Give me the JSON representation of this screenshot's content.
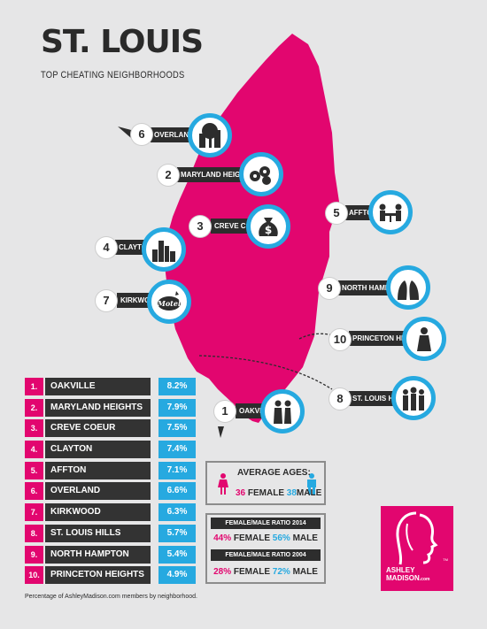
{
  "title": "ST. LOUIS",
  "subtitle": "TOP CHEATING NEIGHBORHOODS",
  "colors": {
    "pink": "#e2066f",
    "blue": "#26a9e0",
    "dark": "#2d2d2d",
    "background": "#e6e6e7"
  },
  "markers": [
    {
      "num": "6",
      "label": "OVERLAND",
      "icon": "buildings-tree-icon"
    },
    {
      "num": "2",
      "label": "MARYLAND HEIGHTS",
      "icon": "casino-chips-icon"
    },
    {
      "num": "3",
      "label": "CREVE COEUR",
      "icon": "money-bag-icon"
    },
    {
      "num": "5",
      "label": "AFFTON",
      "icon": "dinner-table-couple-icon"
    },
    {
      "num": "4",
      "label": "CLAYTON",
      "icon": "city-skyline-icon"
    },
    {
      "num": "7",
      "label": "KIRKWOOD",
      "icon": "motel-sign-icon"
    },
    {
      "num": "9",
      "label": "NORTH HAMPTON",
      "icon": "kissing-couple-icon"
    },
    {
      "num": "10",
      "label": "PRINCETON HEIGHTS",
      "icon": "woman-silhouette-icon"
    },
    {
      "num": "8",
      "label": "ST. LOUIS HILLS",
      "icon": "group-silhouette-icon"
    },
    {
      "num": "1",
      "label": "OAKVILLE",
      "icon": "walking-couple-icon"
    }
  ],
  "chart_data": {
    "type": "table",
    "columns": [
      "rank",
      "neighborhood",
      "percentage"
    ],
    "rows": [
      {
        "rank": "1.",
        "name": "OAKVILLE",
        "value": "8.2%"
      },
      {
        "rank": "2.",
        "name": "MARYLAND HEIGHTS",
        "value": "7.9%"
      },
      {
        "rank": "3.",
        "name": "CREVE COEUR",
        "value": "7.5%"
      },
      {
        "rank": "4.",
        "name": "CLAYTON",
        "value": "7.4%"
      },
      {
        "rank": "5.",
        "name": "AFFTON",
        "value": "7.1%"
      },
      {
        "rank": "6.",
        "name": "OVERLAND",
        "value": "6.6%"
      },
      {
        "rank": "7.",
        "name": "KIRKWOOD",
        "value": "6.3%"
      },
      {
        "rank": "8.",
        "name": "ST. LOUIS HILLS",
        "value": "5.7%"
      },
      {
        "rank": "9.",
        "name": "NORTH HAMPTON",
        "value": "5.4%"
      },
      {
        "rank": "10.",
        "name": "PRINCETON HEIGHTS",
        "value": "4.9%"
      }
    ],
    "footnote": "Percentage of AshleyMadison.com members by neighborhood."
  },
  "ages": {
    "title": "AVERAGE AGES:",
    "female_value": "36",
    "female_label": "FEMALE",
    "male_value": "38",
    "male_label": "MALE"
  },
  "ratios": [
    {
      "title": "FEMALE/MALE RATIO 2014",
      "female": "44%",
      "female_label": "FEMALE",
      "male": "56%",
      "male_label": "MALE"
    },
    {
      "title": "FEMALE/MALE RATIO 2004",
      "female": "28%",
      "female_label": "FEMALE",
      "male": "72%",
      "male_label": "MALE"
    }
  ],
  "logo": {
    "line1": "ASHLEY",
    "line2": "MADISON",
    "suffix": ".com",
    "tm": "TM"
  }
}
